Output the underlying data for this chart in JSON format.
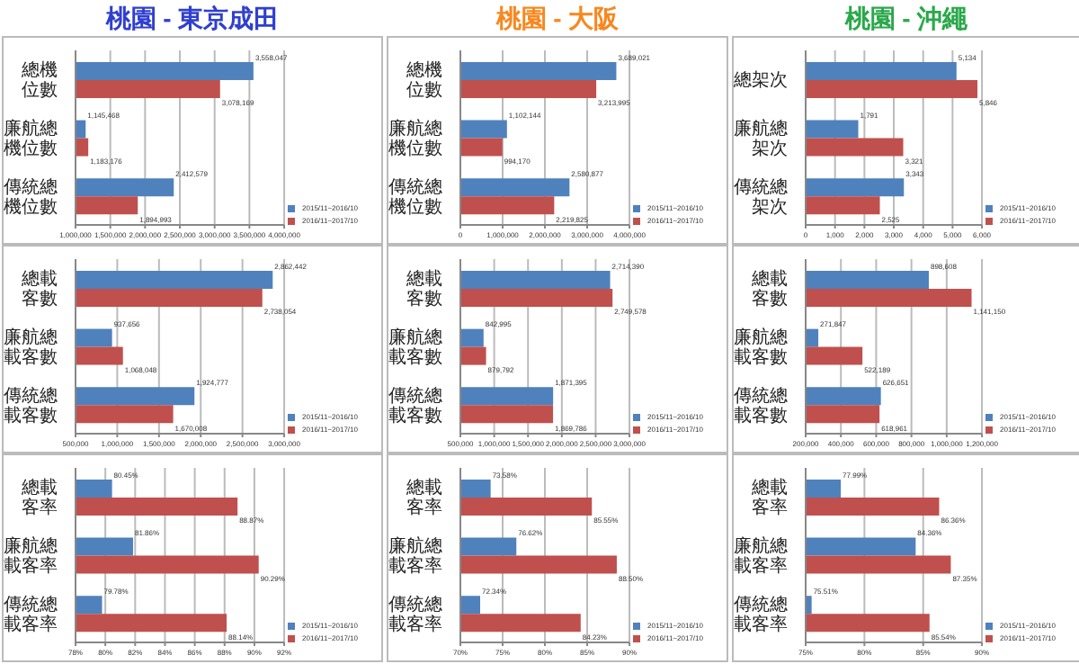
{
  "chart_data": [
    {
      "type": "bar",
      "orientation": "horizontal",
      "title": "桃園 - 東京成田",
      "categories": [
        "總機位數",
        "廉航總機位數",
        "傳統總機位數"
      ],
      "series": [
        {
          "name": "2015/11~2016/10",
          "color": "#4f81bd",
          "values": [
            3558047,
            1145468,
            2412579
          ],
          "value_labels": [
            "3,558,047",
            "1,145,468",
            "2,412,579"
          ]
        },
        {
          "name": "2016/11~2017/10",
          "color": "#c0504d",
          "values": [
            3078169,
            1183176,
            1894993
          ],
          "value_labels": [
            "3,078,169",
            "1,183,176",
            "1,894,993"
          ]
        }
      ],
      "xlim": [
        1000000,
        4000000
      ],
      "xticks": [
        {
          "value": 1000000,
          "label": "1,000,000"
        },
        {
          "value": 1500000,
          "label": "1,500,000"
        },
        {
          "value": 2000000,
          "label": "2,000,000"
        },
        {
          "value": 2500000,
          "label": "2,500,000"
        },
        {
          "value": 3000000,
          "label": "3,000,000"
        },
        {
          "value": 3500000,
          "label": "3,500,000"
        },
        {
          "value": 4000000,
          "label": "4,000,000"
        }
      ],
      "grid": "x",
      "legend": "bottom right"
    },
    {
      "type": "bar",
      "orientation": "horizontal",
      "title": "桃園 - 大阪",
      "categories": [
        "總機位數",
        "廉航總機位數",
        "傳統總機位數"
      ],
      "series": [
        {
          "name": "2015/11~2016/10",
          "color": "#4f81bd",
          "values": [
            3689021,
            1102144,
            2580877
          ],
          "value_labels": [
            "3,689,021",
            "1,102,144",
            "2,580,877"
          ]
        },
        {
          "name": "2016/11~2017/10",
          "color": "#c0504d",
          "values": [
            3213995,
            994170,
            2219825
          ],
          "value_labels": [
            "3,213,995",
            "994,170",
            "2,219,825"
          ]
        }
      ],
      "xlim": [
        0,
        4000000
      ],
      "xticks": [
        0,
        {
          "value": 1000000,
          "label": "1,000,000"
        },
        {
          "value": 2000000,
          "label": "2,000,000"
        },
        {
          "value": 3000000,
          "label": "3,000,000"
        },
        {
          "value": 4000000,
          "label": "4,000,000"
        }
      ],
      "grid": "x",
      "legend": "bottom right"
    },
    {
      "type": "bar",
      "orientation": "horizontal",
      "title": "桃園 - 沖繩",
      "categories": [
        "總架次",
        "廉航總架次",
        "傳統總架次"
      ],
      "series": [
        {
          "name": "2015/11~2016/10",
          "color": "#4f81bd",
          "values": [
            5134,
            1791,
            3343
          ],
          "value_labels": [
            "5,134",
            "1,791",
            "3,343"
          ]
        },
        {
          "name": "2016/11~2017/10",
          "color": "#c0504d",
          "values": [
            5846,
            3321,
            2525
          ],
          "value_labels": [
            "5,846",
            "3,321",
            "2,525"
          ]
        }
      ],
      "xlim": [
        0,
        6000
      ],
      "xticks": [
        0,
        {
          "value": 1000,
          "label": "1,000"
        },
        {
          "value": 2000,
          "label": "2,000"
        },
        {
          "value": 3000,
          "label": "3,000"
        },
        {
          "value": 4000,
          "label": "4,000"
        },
        {
          "value": 5000,
          "label": "5,000"
        },
        {
          "value": 6000,
          "label": "6,000"
        }
      ],
      "grid": "x",
      "legend": "bottom right"
    },
    {
      "type": "bar",
      "orientation": "horizontal",
      "categories": [
        "總載客數",
        "廉航總載客數",
        "傳統總載客數"
      ],
      "series": [
        {
          "name": "2015/11~2016/10",
          "color": "#4f81bd",
          "values": [
            2862442,
            937656,
            1924777
          ],
          "value_labels": [
            "2,862,442",
            "937,656",
            "1,924,777"
          ]
        },
        {
          "name": "2016/11~2017/10",
          "color": "#c0504d",
          "values": [
            2738054,
            1068048,
            1670008
          ],
          "value_labels": [
            "2,738,054",
            "1,068,048",
            "1,670,008"
          ]
        }
      ],
      "xlim": [
        500000,
        3000000
      ],
      "xticks": [
        {
          "value": 500000,
          "label": "500,000"
        },
        {
          "value": 1000000,
          "label": "1,000,000"
        },
        {
          "value": 1500000,
          "label": "1,500,000"
        },
        {
          "value": 2000000,
          "label": "2,000,000"
        },
        {
          "value": 2500000,
          "label": "2,500,000"
        },
        {
          "value": 3000000,
          "label": "3,000,000"
        }
      ],
      "grid": "x",
      "legend": "bottom right"
    },
    {
      "type": "bar",
      "orientation": "horizontal",
      "categories": [
        "總載客數",
        "廉航總載客數",
        "傳統總載客數"
      ],
      "series": [
        {
          "name": "2015/11~2016/10",
          "color": "#4f81bd",
          "values": [
            2714390,
            842995,
            1871395
          ],
          "value_labels": [
            "2,714,390",
            "842,995",
            "1,871,395"
          ]
        },
        {
          "name": "2016/11~2017/10",
          "color": "#c0504d",
          "values": [
            2749578,
            879792,
            1869786
          ],
          "value_labels": [
            "2,749,578",
            "879,792",
            "1,869,786"
          ]
        }
      ],
      "xlim": [
        500000,
        3000000
      ],
      "xticks": [
        {
          "value": 500000,
          "label": "500,000"
        },
        {
          "value": 1000000,
          "label": "1,000,000"
        },
        {
          "value": 1500000,
          "label": "1,500,000"
        },
        {
          "value": 2000000,
          "label": "2,000,000"
        },
        {
          "value": 2500000,
          "label": "2,500,000"
        },
        {
          "value": 3000000,
          "label": "3,000,000"
        }
      ],
      "grid": "x",
      "legend": "bottom right"
    },
    {
      "type": "bar",
      "orientation": "horizontal",
      "categories": [
        "總載客數",
        "廉航總載客數",
        "傳統總載客數"
      ],
      "series": [
        {
          "name": "2015/11~2016/10",
          "color": "#4f81bd",
          "values": [
            898608,
            271847,
            626651
          ],
          "value_labels": [
            "898,608",
            "271,847",
            "626,651"
          ]
        },
        {
          "name": "2016/11~2017/10",
          "color": "#c0504d",
          "values": [
            1141150,
            522189,
            618961
          ],
          "value_labels": [
            "1,141,150",
            "522,189",
            "618,961"
          ]
        }
      ],
      "xlim": [
        200000,
        1200000
      ],
      "xticks": [
        {
          "value": 200000,
          "label": "200,000"
        },
        {
          "value": 400000,
          "label": "400,000"
        },
        {
          "value": 600000,
          "label": "600,000"
        },
        {
          "value": 800000,
          "label": "800,000"
        },
        {
          "value": 1000000,
          "label": "1,000,000"
        },
        {
          "value": 1200000,
          "label": "1,200,000"
        }
      ],
      "grid": "x",
      "legend": "bottom right"
    },
    {
      "type": "bar",
      "orientation": "horizontal",
      "categories": [
        "總載客率",
        "廉航總載客率",
        "傳統總載客率"
      ],
      "series": [
        {
          "name": "2015/11~2016/10",
          "color": "#4f81bd",
          "values": [
            80.45,
            81.86,
            79.78
          ],
          "value_labels": [
            "80.45%",
            "81.86%",
            "79.78%"
          ]
        },
        {
          "name": "2016/11~2017/10",
          "color": "#c0504d",
          "values": [
            88.87,
            90.29,
            88.14
          ],
          "value_labels": [
            "88.87%",
            "90.29%",
            "88.14%"
          ]
        }
      ],
      "xlim": [
        78,
        92
      ],
      "xticks": [
        {
          "value": 78,
          "label": "78%"
        },
        {
          "value": 80,
          "label": "80%"
        },
        {
          "value": 82,
          "label": "82%"
        },
        {
          "value": 84,
          "label": "84%"
        },
        {
          "value": 86,
          "label": "86%"
        },
        {
          "value": 88,
          "label": "88%"
        },
        {
          "value": 90,
          "label": "90%"
        },
        {
          "value": 92,
          "label": "92%"
        }
      ],
      "grid": "x",
      "legend": "bottom right"
    },
    {
      "type": "bar",
      "orientation": "horizontal",
      "categories": [
        "總載客率",
        "廉航總載客率",
        "傳統總載客率"
      ],
      "series": [
        {
          "name": "2015/11~2016/10",
          "color": "#4f81bd",
          "values": [
            73.58,
            76.62,
            72.34
          ],
          "value_labels": [
            "73.58%",
            "76.62%",
            "72.34%"
          ]
        },
        {
          "name": "2016/11~2017/10",
          "color": "#c0504d",
          "values": [
            85.55,
            88.5,
            84.23
          ],
          "value_labels": [
            "85.55%",
            "88.50%",
            "84.23%"
          ]
        }
      ],
      "xlim": [
        70,
        90
      ],
      "xticks": [
        {
          "value": 70,
          "label": "70%"
        },
        {
          "value": 75,
          "label": "75%"
        },
        {
          "value": 80,
          "label": "80%"
        },
        {
          "value": 85,
          "label": "85%"
        },
        {
          "value": 90,
          "label": "90%"
        }
      ],
      "grid": "x",
      "legend": "bottom right"
    },
    {
      "type": "bar",
      "orientation": "horizontal",
      "categories": [
        "總載客率",
        "廉航總載客率",
        "傳統總載客率"
      ],
      "series": [
        {
          "name": "2015/11~2016/10",
          "color": "#4f81bd",
          "values": [
            77.99,
            84.36,
            75.51
          ],
          "value_labels": [
            "77.99%",
            "84.36%",
            "75.51%"
          ]
        },
        {
          "name": "2016/11~2017/10",
          "color": "#c0504d",
          "values": [
            86.36,
            87.35,
            85.54
          ],
          "value_labels": [
            "86.36%",
            "87.35%",
            "85.54%"
          ]
        }
      ],
      "xlim": [
        75,
        90
      ],
      "xticks": [
        {
          "value": 75,
          "label": "75%"
        },
        {
          "value": 80,
          "label": "80%"
        },
        {
          "value": 85,
          "label": "85%"
        },
        {
          "value": 90,
          "label": "90%"
        }
      ],
      "grid": "x",
      "legend": "bottom right"
    }
  ]
}
